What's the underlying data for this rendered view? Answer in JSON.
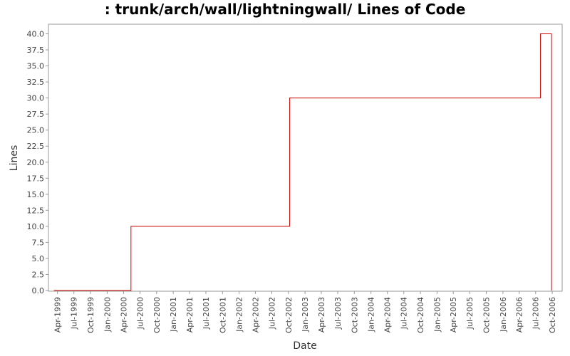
{
  "chart_data": {
    "type": "line",
    "step": true,
    "title": ": trunk/arch/wall/lightningwall/ Lines of Code",
    "xlabel": "Date",
    "ylabel": "Lines",
    "ylim": [
      0,
      41.5
    ],
    "yticks": [
      0,
      2.5,
      5,
      7.5,
      10,
      12.5,
      15,
      17.5,
      20,
      22.5,
      25,
      27.5,
      30,
      32.5,
      35,
      37.5,
      40
    ],
    "xlim": [
      "1999-02-10",
      "2006-11-25"
    ],
    "xticks": [
      {
        "date": "1999-04-01",
        "label": "Apr-1999"
      },
      {
        "date": "1999-07-01",
        "label": "Jul-1999"
      },
      {
        "date": "1999-10-01",
        "label": "Oct-1999"
      },
      {
        "date": "2000-01-01",
        "label": "Jan-2000"
      },
      {
        "date": "2000-04-01",
        "label": "Apr-2000"
      },
      {
        "date": "2000-07-01",
        "label": "Jul-2000"
      },
      {
        "date": "2000-10-01",
        "label": "Oct-2000"
      },
      {
        "date": "2001-01-01",
        "label": "Jan-2001"
      },
      {
        "date": "2001-04-01",
        "label": "Apr-2001"
      },
      {
        "date": "2001-07-01",
        "label": "Jul-2001"
      },
      {
        "date": "2001-10-01",
        "label": "Oct-2001"
      },
      {
        "date": "2002-01-01",
        "label": "Jan-2002"
      },
      {
        "date": "2002-04-01",
        "label": "Apr-2002"
      },
      {
        "date": "2002-07-01",
        "label": "Jul-2002"
      },
      {
        "date": "2002-10-01",
        "label": "Oct-2002"
      },
      {
        "date": "2003-01-01",
        "label": "Jan-2003"
      },
      {
        "date": "2003-04-01",
        "label": "Apr-2003"
      },
      {
        "date": "2003-07-01",
        "label": "Jul-2003"
      },
      {
        "date": "2003-10-01",
        "label": "Oct-2003"
      },
      {
        "date": "2004-01-01",
        "label": "Jan-2004"
      },
      {
        "date": "2004-04-01",
        "label": "Apr-2004"
      },
      {
        "date": "2004-07-01",
        "label": "Jul-2004"
      },
      {
        "date": "2004-10-01",
        "label": "Oct-2004"
      },
      {
        "date": "2005-01-01",
        "label": "Jan-2005"
      },
      {
        "date": "2005-04-01",
        "label": "Apr-2005"
      },
      {
        "date": "2005-07-01",
        "label": "Jul-2005"
      },
      {
        "date": "2005-10-01",
        "label": "Oct-2005"
      },
      {
        "date": "2006-01-01",
        "label": "Jan-2006"
      },
      {
        "date": "2006-04-01",
        "label": "Apr-2006"
      },
      {
        "date": "2006-07-01",
        "label": "Jul-2006"
      },
      {
        "date": "2006-10-01",
        "label": "Oct-2006"
      }
    ],
    "series": [
      {
        "line_color": "#cc0000",
        "points": [
          {
            "x": "1999-03-12",
            "y": 0
          },
          {
            "x": "2000-05-12",
            "y": 10
          },
          {
            "x": "2002-10-08",
            "y": 30
          },
          {
            "x": "2006-07-28",
            "y": 40
          },
          {
            "x": "2006-09-27",
            "y": 0
          }
        ]
      }
    ],
    "grid": false,
    "legend": "none"
  }
}
